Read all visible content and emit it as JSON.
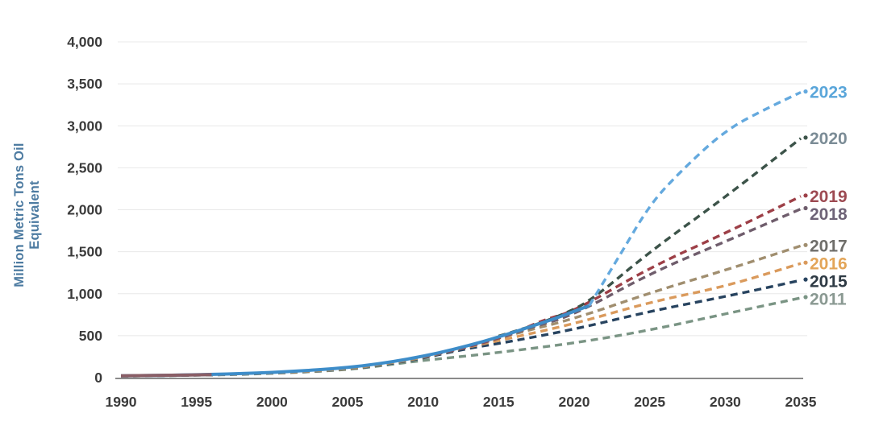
{
  "chart_data": {
    "type": "line",
    "title": "",
    "xlabel": "",
    "ylabel": "Million Metric Tons Oil Equivalent",
    "x_tick_labels": [
      "1990",
      "1995",
      "2000",
      "2005",
      "2010",
      "2015",
      "2020",
      "2025",
      "2030",
      "2035"
    ],
    "y_tick_labels": [
      "0",
      "500",
      "1,000",
      "1,500",
      "2,000",
      "2,500",
      "3,000",
      "3,500",
      "4,000"
    ],
    "xlim": [
      1990,
      2035
    ],
    "ylim": [
      0,
      4000
    ],
    "y_tick_step": 500,
    "grid": "horizontal",
    "legend_position": "labels at right ends of lines",
    "series": [
      {
        "name": "projection-2011",
        "label": "2011",
        "style": "dashed",
        "line_color": "#7a9484",
        "label_color": "#8a9992",
        "points": [
          [
            1990,
            17
          ],
          [
            1995,
            26
          ],
          [
            2000,
            48
          ],
          [
            2005,
            92
          ],
          [
            2008,
            160
          ],
          [
            2010,
            205
          ],
          [
            2013,
            260
          ],
          [
            2015,
            300
          ],
          [
            2020,
            410
          ],
          [
            2025,
            565
          ],
          [
            2030,
            760
          ],
          [
            2035,
            950
          ]
        ]
      },
      {
        "name": "projection-2015",
        "label": "2015",
        "style": "dashed",
        "line_color": "#27435f",
        "label_color": "#2e3a44",
        "points": [
          [
            1990,
            18
          ],
          [
            1995,
            28
          ],
          [
            2000,
            52
          ],
          [
            2005,
            98
          ],
          [
            2008,
            172
          ],
          [
            2010,
            232
          ],
          [
            2013,
            350
          ],
          [
            2015,
            405
          ],
          [
            2020,
            575
          ],
          [
            2025,
            790
          ],
          [
            2030,
            965
          ],
          [
            2035,
            1160
          ]
        ]
      },
      {
        "name": "projection-2016",
        "label": "2016",
        "style": "dashed",
        "line_color": "#da9a5c",
        "label_color": "#e3a558",
        "points": [
          [
            1990,
            19
          ],
          [
            1995,
            29
          ],
          [
            2000,
            54
          ],
          [
            2005,
            100
          ],
          [
            2008,
            178
          ],
          [
            2010,
            240
          ],
          [
            2013,
            365
          ],
          [
            2015,
            440
          ],
          [
            2020,
            640
          ],
          [
            2025,
            900
          ],
          [
            2030,
            1085
          ],
          [
            2035,
            1360
          ]
        ]
      },
      {
        "name": "projection-2017",
        "label": "2017",
        "style": "dashed",
        "line_color": "#a08e6f",
        "label_color": "#6f6e6a",
        "points": [
          [
            1990,
            20
          ],
          [
            1995,
            30
          ],
          [
            2000,
            56
          ],
          [
            2005,
            102
          ],
          [
            2008,
            182
          ],
          [
            2010,
            245
          ],
          [
            2013,
            375
          ],
          [
            2015,
            465
          ],
          [
            2016,
            520
          ],
          [
            2020,
            700
          ],
          [
            2025,
            1010
          ],
          [
            2030,
            1280
          ],
          [
            2035,
            1570
          ]
        ]
      },
      {
        "name": "projection-2018",
        "label": "2018",
        "style": "dashed",
        "line_color": "#6f5d6c",
        "label_color": "#6e6377",
        "points": [
          [
            2010,
            248
          ],
          [
            2012,
            320
          ],
          [
            2014,
            415
          ],
          [
            2016,
            525
          ],
          [
            2017,
            590
          ],
          [
            2020,
            745
          ],
          [
            2025,
            1240
          ],
          [
            2030,
            1620
          ],
          [
            2035,
            2010
          ]
        ]
      },
      {
        "name": "projection-2019",
        "label": "2019",
        "style": "dashed",
        "line_color": "#9d3f47",
        "label_color": "#9d4a52",
        "points": [
          [
            2010,
            252
          ],
          [
            2012,
            325
          ],
          [
            2014,
            420
          ],
          [
            2016,
            530
          ],
          [
            2018,
            690
          ],
          [
            2020,
            790
          ],
          [
            2025,
            1310
          ],
          [
            2030,
            1720
          ],
          [
            2035,
            2160
          ]
        ]
      },
      {
        "name": "projection-2020",
        "label": "2020",
        "style": "dashed",
        "line_color": "#3c5349",
        "label_color": "#7b8c96",
        "points": [
          [
            2015,
            495
          ],
          [
            2017,
            600
          ],
          [
            2019,
            735
          ],
          [
            2021,
            900
          ],
          [
            2025,
            1500
          ],
          [
            2030,
            2150
          ],
          [
            2035,
            2850
          ]
        ]
      },
      {
        "name": "historical-actual",
        "label": "",
        "style": "solid",
        "line_color": "#3e8dc9",
        "label_color": "#3e8dc9",
        "points": [
          [
            1990,
            22
          ],
          [
            1992,
            26
          ],
          [
            1994,
            31
          ],
          [
            1996,
            38
          ],
          [
            1998,
            48
          ],
          [
            2000,
            62
          ],
          [
            2002,
            82
          ],
          [
            2004,
            105
          ],
          [
            2006,
            140
          ],
          [
            2008,
            190
          ],
          [
            2010,
            255
          ],
          [
            2012,
            335
          ],
          [
            2014,
            430
          ],
          [
            2016,
            540
          ],
          [
            2018,
            660
          ],
          [
            2019,
            720
          ],
          [
            2020,
            790
          ],
          [
            2021,
            858
          ]
        ]
      },
      {
        "name": "early-overlap-bundle",
        "label": "",
        "style": "solid",
        "line_color": "#8a5e66",
        "label_color": "#8a5e66",
        "points": [
          [
            1990,
            22
          ],
          [
            1993,
            27
          ],
          [
            1996,
            36
          ]
        ]
      },
      {
        "name": "projection-2023",
        "label": "2023",
        "style": "dashed",
        "line_color": "#64a9de",
        "label_color": "#5aa6da",
        "points": [
          [
            2021,
            858
          ],
          [
            2023,
            1450
          ],
          [
            2025,
            2060
          ],
          [
            2027,
            2450
          ],
          [
            2030,
            2950
          ],
          [
            2033,
            3230
          ],
          [
            2035,
            3400
          ]
        ]
      }
    ]
  }
}
